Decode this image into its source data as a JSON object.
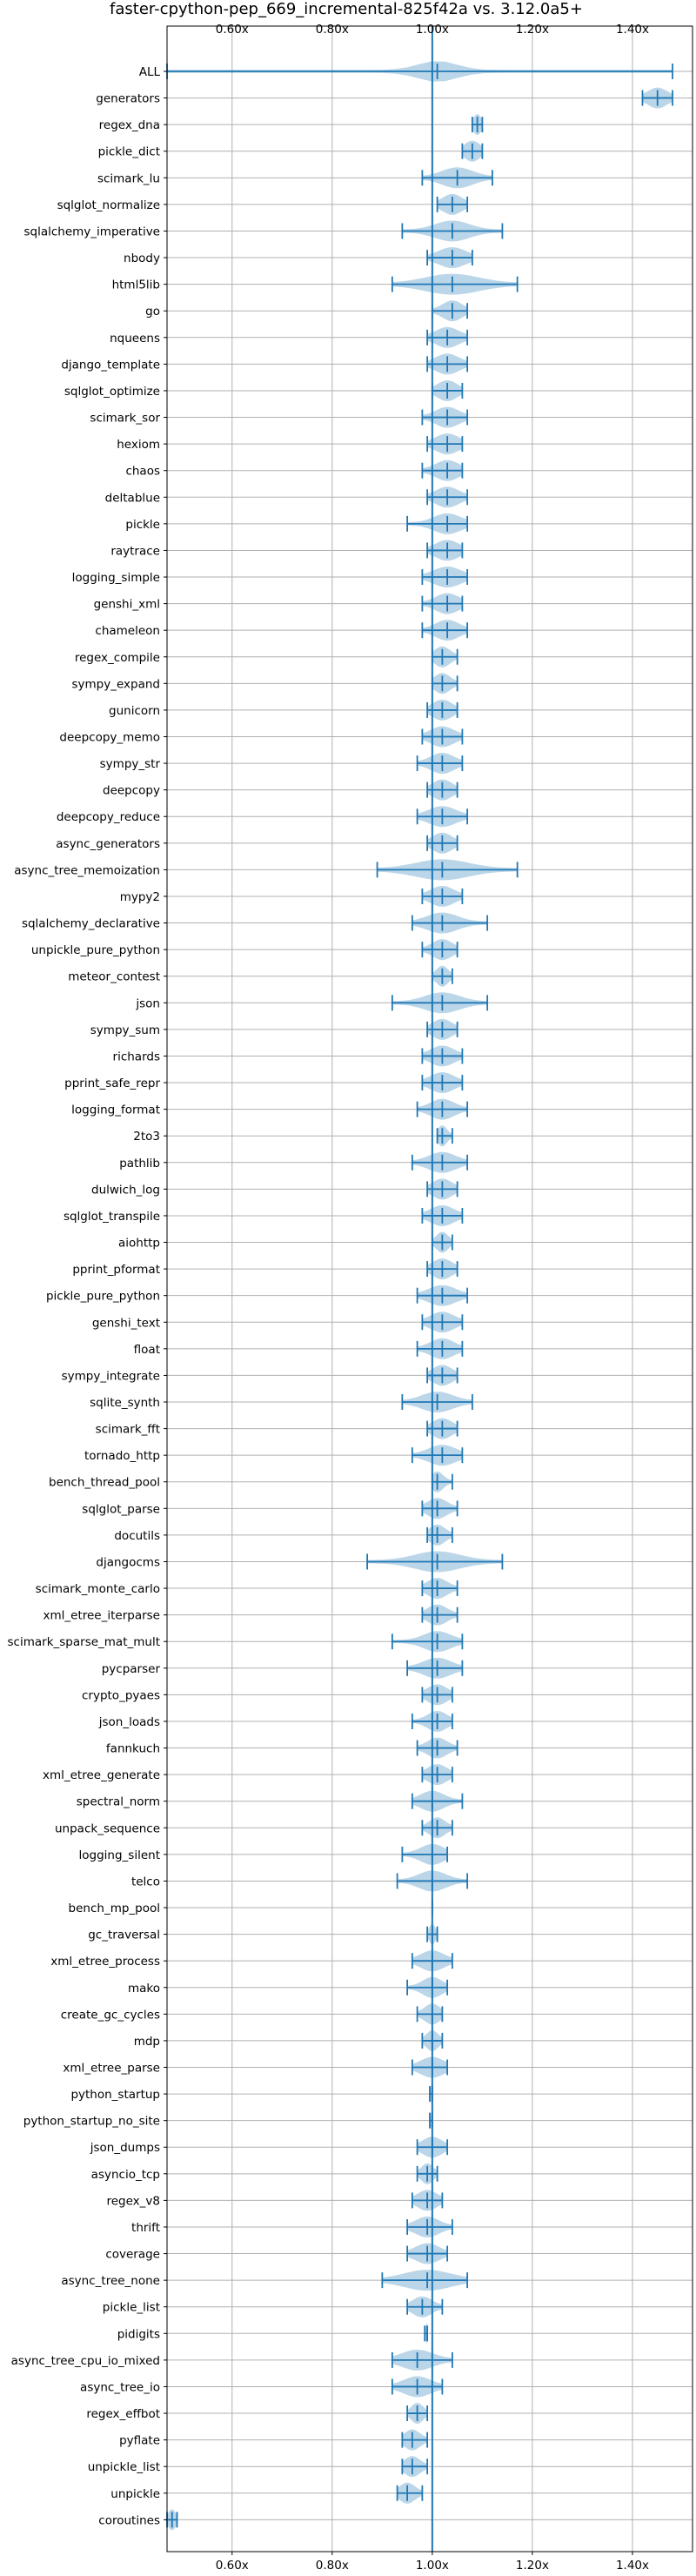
{
  "chart_data": {
    "type": "violin",
    "title": "faster-cpython-pep_669_incremental-825f42a vs. 3.12.0a5+",
    "xlim": [
      0.47,
      1.52
    ],
    "xticks": [
      0.6,
      0.8,
      1.0,
      1.2,
      1.4
    ],
    "xtick_labels": [
      "0.60x",
      "0.80x",
      "1.00x",
      "1.20x",
      "1.40x"
    ],
    "reference_line": 1.0,
    "grid": true,
    "series": [
      {
        "label": "ALL",
        "min": 0.47,
        "max": 1.48,
        "center": 1.01,
        "spread": 0.05
      },
      {
        "label": "generators",
        "min": 1.42,
        "max": 1.48,
        "center": 1.45,
        "spread": 0.025
      },
      {
        "label": "regex_dna",
        "min": 1.08,
        "max": 1.1,
        "center": 1.09,
        "spread": 0.01
      },
      {
        "label": "pickle_dict",
        "min": 1.06,
        "max": 1.1,
        "center": 1.08,
        "spread": 0.02
      },
      {
        "label": "scimark_lu",
        "min": 0.98,
        "max": 1.12,
        "center": 1.05,
        "spread": 0.04
      },
      {
        "label": "sqlglot_normalize",
        "min": 1.01,
        "max": 1.07,
        "center": 1.04,
        "spread": 0.025
      },
      {
        "label": "sqlalchemy_imperative",
        "min": 0.94,
        "max": 1.14,
        "center": 1.04,
        "spread": 0.045
      },
      {
        "label": "nbody",
        "min": 0.99,
        "max": 1.08,
        "center": 1.04,
        "spread": 0.035
      },
      {
        "label": "html5lib",
        "min": 0.92,
        "max": 1.17,
        "center": 1.04,
        "spread": 0.07
      },
      {
        "label": "go",
        "min": 1.0,
        "max": 1.07,
        "center": 1.04,
        "spread": 0.025
      },
      {
        "label": "nqueens",
        "min": 0.99,
        "max": 1.07,
        "center": 1.03,
        "spread": 0.03
      },
      {
        "label": "django_template",
        "min": 0.99,
        "max": 1.07,
        "center": 1.03,
        "spread": 0.03
      },
      {
        "label": "sqlglot_optimize",
        "min": 1.0,
        "max": 1.06,
        "center": 1.03,
        "spread": 0.025
      },
      {
        "label": "scimark_sor",
        "min": 0.98,
        "max": 1.07,
        "center": 1.03,
        "spread": 0.03
      },
      {
        "label": "hexiom",
        "min": 0.99,
        "max": 1.06,
        "center": 1.03,
        "spread": 0.03
      },
      {
        "label": "chaos",
        "min": 0.98,
        "max": 1.06,
        "center": 1.03,
        "spread": 0.03
      },
      {
        "label": "deltablue",
        "min": 0.99,
        "max": 1.07,
        "center": 1.03,
        "spread": 0.03
      },
      {
        "label": "pickle",
        "min": 0.95,
        "max": 1.07,
        "center": 1.03,
        "spread": 0.035
      },
      {
        "label": "raytrace",
        "min": 0.99,
        "max": 1.06,
        "center": 1.03,
        "spread": 0.03
      },
      {
        "label": "logging_simple",
        "min": 0.98,
        "max": 1.07,
        "center": 1.03,
        "spread": 0.035
      },
      {
        "label": "genshi_xml",
        "min": 0.98,
        "max": 1.06,
        "center": 1.03,
        "spread": 0.03
      },
      {
        "label": "chameleon",
        "min": 0.98,
        "max": 1.07,
        "center": 1.03,
        "spread": 0.03
      },
      {
        "label": "regex_compile",
        "min": 1.0,
        "max": 1.05,
        "center": 1.02,
        "spread": 0.02
      },
      {
        "label": "sympy_expand",
        "min": 1.0,
        "max": 1.05,
        "center": 1.02,
        "spread": 0.02
      },
      {
        "label": "gunicorn",
        "min": 0.99,
        "max": 1.05,
        "center": 1.02,
        "spread": 0.025
      },
      {
        "label": "deepcopy_memo",
        "min": 0.98,
        "max": 1.06,
        "center": 1.02,
        "spread": 0.03
      },
      {
        "label": "sympy_str",
        "min": 0.97,
        "max": 1.06,
        "center": 1.02,
        "spread": 0.03
      },
      {
        "label": "deepcopy",
        "min": 0.99,
        "max": 1.05,
        "center": 1.02,
        "spread": 0.025
      },
      {
        "label": "deepcopy_reduce",
        "min": 0.97,
        "max": 1.07,
        "center": 1.02,
        "spread": 0.035
      },
      {
        "label": "async_generators",
        "min": 0.99,
        "max": 1.05,
        "center": 1.02,
        "spread": 0.025
      },
      {
        "label": "async_tree_memoization",
        "min": 0.89,
        "max": 1.17,
        "center": 1.02,
        "spread": 0.07
      },
      {
        "label": "mypy2",
        "min": 0.98,
        "max": 1.06,
        "center": 1.02,
        "spread": 0.03
      },
      {
        "label": "sqlalchemy_declarative",
        "min": 0.96,
        "max": 1.11,
        "center": 1.02,
        "spread": 0.04
      },
      {
        "label": "unpickle_pure_python",
        "min": 0.98,
        "max": 1.05,
        "center": 1.02,
        "spread": 0.025
      },
      {
        "label": "meteor_contest",
        "min": 1.0,
        "max": 1.04,
        "center": 1.02,
        "spread": 0.015
      },
      {
        "label": "json",
        "min": 0.92,
        "max": 1.11,
        "center": 1.02,
        "spread": 0.045
      },
      {
        "label": "sympy_sum",
        "min": 0.99,
        "max": 1.05,
        "center": 1.02,
        "spread": 0.025
      },
      {
        "label": "richards",
        "min": 0.98,
        "max": 1.06,
        "center": 1.02,
        "spread": 0.03
      },
      {
        "label": "pprint_safe_repr",
        "min": 0.98,
        "max": 1.06,
        "center": 1.02,
        "spread": 0.03
      },
      {
        "label": "logging_format",
        "min": 0.97,
        "max": 1.07,
        "center": 1.02,
        "spread": 0.03
      },
      {
        "label": "2to3",
        "min": 1.01,
        "max": 1.04,
        "center": 1.02,
        "spread": 0.012
      },
      {
        "label": "pathlib",
        "min": 0.96,
        "max": 1.07,
        "center": 1.02,
        "spread": 0.035
      },
      {
        "label": "dulwich_log",
        "min": 0.99,
        "max": 1.05,
        "center": 1.02,
        "spread": 0.025
      },
      {
        "label": "sqlglot_transpile",
        "min": 0.98,
        "max": 1.06,
        "center": 1.02,
        "spread": 0.03
      },
      {
        "label": "aiohttp",
        "min": 1.0,
        "max": 1.04,
        "center": 1.02,
        "spread": 0.015
      },
      {
        "label": "pprint_pformat",
        "min": 0.99,
        "max": 1.05,
        "center": 1.02,
        "spread": 0.025
      },
      {
        "label": "pickle_pure_python",
        "min": 0.97,
        "max": 1.07,
        "center": 1.02,
        "spread": 0.035
      },
      {
        "label": "genshi_text",
        "min": 0.98,
        "max": 1.06,
        "center": 1.02,
        "spread": 0.03
      },
      {
        "label": "float",
        "min": 0.97,
        "max": 1.06,
        "center": 1.02,
        "spread": 0.03
      },
      {
        "label": "sympy_integrate",
        "min": 0.99,
        "max": 1.05,
        "center": 1.02,
        "spread": 0.025
      },
      {
        "label": "sqlite_synth",
        "min": 0.94,
        "max": 1.08,
        "center": 1.01,
        "spread": 0.04
      },
      {
        "label": "scimark_fft",
        "min": 0.99,
        "max": 1.05,
        "center": 1.02,
        "spread": 0.025
      },
      {
        "label": "tornado_http",
        "min": 0.96,
        "max": 1.06,
        "center": 1.02,
        "spread": 0.035
      },
      {
        "label": "bench_thread_pool",
        "min": 1.0,
        "max": 1.04,
        "center": 1.01,
        "spread": 0.015
      },
      {
        "label": "sqlglot_parse",
        "min": 0.98,
        "max": 1.05,
        "center": 1.01,
        "spread": 0.025
      },
      {
        "label": "docutils",
        "min": 0.99,
        "max": 1.04,
        "center": 1.01,
        "spread": 0.02
      },
      {
        "label": "djangocms",
        "min": 0.87,
        "max": 1.14,
        "center": 1.01,
        "spread": 0.06
      },
      {
        "label": "scimark_monte_carlo",
        "min": 0.98,
        "max": 1.05,
        "center": 1.01,
        "spread": 0.025
      },
      {
        "label": "xml_etree_iterparse",
        "min": 0.98,
        "max": 1.05,
        "center": 1.01,
        "spread": 0.025
      },
      {
        "label": "scimark_sparse_mat_mult",
        "min": 0.92,
        "max": 1.06,
        "center": 1.01,
        "spread": 0.035
      },
      {
        "label": "pycparser",
        "min": 0.95,
        "max": 1.06,
        "center": 1.01,
        "spread": 0.035
      },
      {
        "label": "crypto_pyaes",
        "min": 0.98,
        "max": 1.04,
        "center": 1.01,
        "spread": 0.025
      },
      {
        "label": "json_loads",
        "min": 0.96,
        "max": 1.04,
        "center": 1.01,
        "spread": 0.025
      },
      {
        "label": "fannkuch",
        "min": 0.97,
        "max": 1.05,
        "center": 1.01,
        "spread": 0.025
      },
      {
        "label": "xml_etree_generate",
        "min": 0.98,
        "max": 1.04,
        "center": 1.01,
        "spread": 0.025
      },
      {
        "label": "spectral_norm",
        "min": 0.96,
        "max": 1.06,
        "center": 1.0,
        "spread": 0.03
      },
      {
        "label": "unpack_sequence",
        "min": 0.98,
        "max": 1.04,
        "center": 1.01,
        "spread": 0.02
      },
      {
        "label": "logging_silent",
        "min": 0.94,
        "max": 1.03,
        "center": 1.0,
        "spread": 0.03
      },
      {
        "label": "telco",
        "min": 0.93,
        "max": 1.07,
        "center": 1.0,
        "spread": 0.035
      },
      {
        "label": "bench_mp_pool",
        "min": 1.0,
        "max": 1.0,
        "center": 1.0,
        "spread": 0.0
      },
      {
        "label": "gc_traversal",
        "min": 0.99,
        "max": 1.01,
        "center": 1.0,
        "spread": 0.008
      },
      {
        "label": "xml_etree_process",
        "min": 0.96,
        "max": 1.04,
        "center": 1.0,
        "spread": 0.03
      },
      {
        "label": "mako",
        "min": 0.95,
        "max": 1.03,
        "center": 1.0,
        "spread": 0.025
      },
      {
        "label": "create_gc_cycles",
        "min": 0.97,
        "max": 1.02,
        "center": 1.0,
        "spread": 0.02
      },
      {
        "label": "mdp",
        "min": 0.98,
        "max": 1.02,
        "center": 1.0,
        "spread": 0.015
      },
      {
        "label": "xml_etree_parse",
        "min": 0.96,
        "max": 1.03,
        "center": 1.0,
        "spread": 0.03
      },
      {
        "label": "python_startup",
        "min": 0.995,
        "max": 1.0,
        "center": 1.0,
        "spread": 0.004
      },
      {
        "label": "python_startup_no_site",
        "min": 0.995,
        "max": 1.0,
        "center": 1.0,
        "spread": 0.004
      },
      {
        "label": "json_dumps",
        "min": 0.97,
        "max": 1.03,
        "center": 1.0,
        "spread": 0.025
      },
      {
        "label": "asyncio_tcp",
        "min": 0.97,
        "max": 1.01,
        "center": 0.99,
        "spread": 0.015
      },
      {
        "label": "regex_v8",
        "min": 0.96,
        "max": 1.02,
        "center": 0.99,
        "spread": 0.025
      },
      {
        "label": "thrift",
        "min": 0.95,
        "max": 1.04,
        "center": 0.99,
        "spread": 0.03
      },
      {
        "label": "coverage",
        "min": 0.95,
        "max": 1.03,
        "center": 0.99,
        "spread": 0.03
      },
      {
        "label": "async_tree_none",
        "min": 0.9,
        "max": 1.07,
        "center": 0.99,
        "spread": 0.06
      },
      {
        "label": "pickle_list",
        "min": 0.95,
        "max": 1.02,
        "center": 0.98,
        "spread": 0.025
      },
      {
        "label": "pidigits",
        "min": 0.985,
        "max": 0.99,
        "center": 0.99,
        "spread": 0.004
      },
      {
        "label": "async_tree_cpu_io_mixed",
        "min": 0.92,
        "max": 1.04,
        "center": 0.97,
        "spread": 0.04
      },
      {
        "label": "async_tree_io",
        "min": 0.92,
        "max": 1.02,
        "center": 0.97,
        "spread": 0.035
      },
      {
        "label": "regex_effbot",
        "min": 0.95,
        "max": 0.99,
        "center": 0.97,
        "spread": 0.015
      },
      {
        "label": "pyflate",
        "min": 0.94,
        "max": 0.99,
        "center": 0.96,
        "spread": 0.02
      },
      {
        "label": "unpickle_list",
        "min": 0.94,
        "max": 0.99,
        "center": 0.96,
        "spread": 0.02
      },
      {
        "label": "unpickle",
        "min": 0.93,
        "max": 0.98,
        "center": 0.95,
        "spread": 0.02
      },
      {
        "label": "coroutines",
        "min": 0.47,
        "max": 0.49,
        "center": 0.48,
        "spread": 0.01
      }
    ]
  }
}
